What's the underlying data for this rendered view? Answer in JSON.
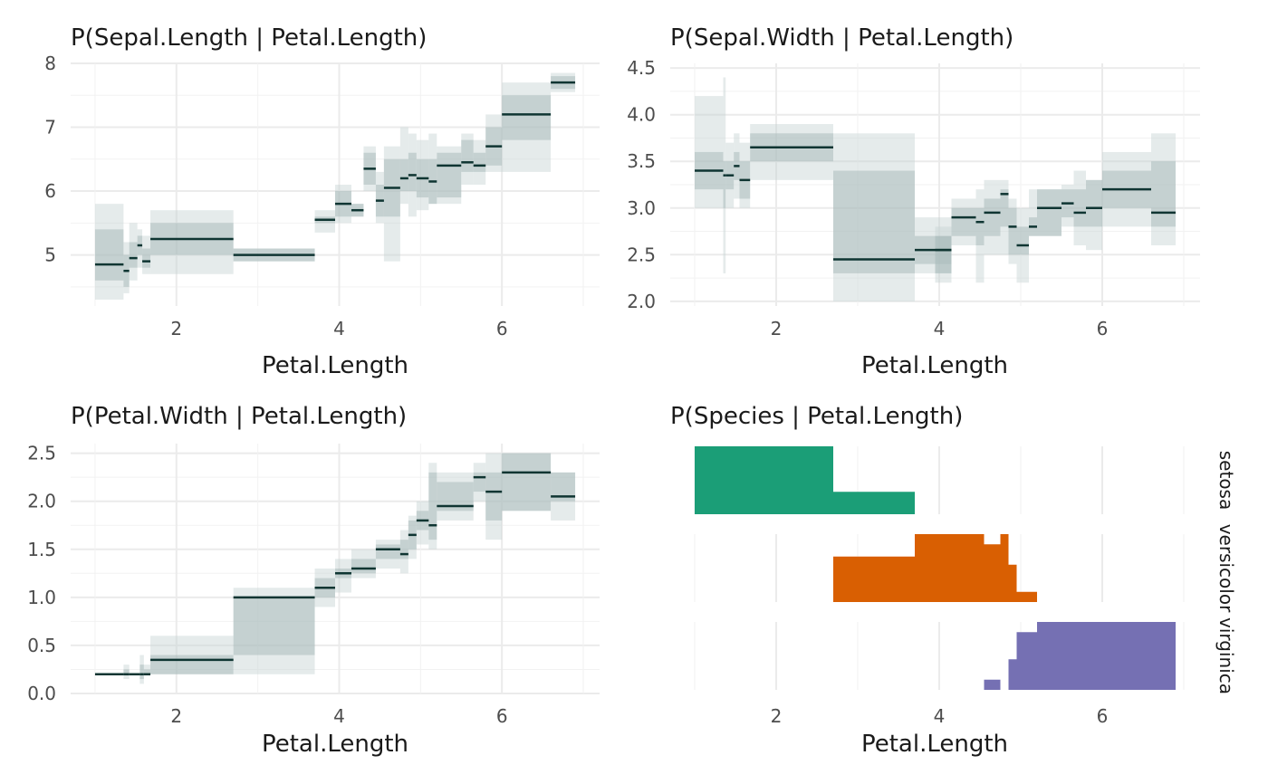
{
  "colors": {
    "band_outer": "#c5d3d3",
    "band_inner": "#9db1b1",
    "median": "#0f3532",
    "setosa": "#1b9e77",
    "versicolor": "#d95f02",
    "virginica": "#7570b3"
  },
  "chart_data": [
    {
      "type": "step-interval",
      "title": "P(Sepal.Length | Petal.Length)",
      "xlabel": "Petal.Length",
      "ylabel": "",
      "xlim": [
        0.7,
        7.2
      ],
      "ylim": [
        4.2,
        8.0
      ],
      "x_ticks": [
        2,
        4,
        6
      ],
      "y_ticks": [
        5,
        6,
        7,
        8
      ],
      "grid": true,
      "segments": [
        {
          "x0": 1.0,
          "x1": 1.35,
          "median": 4.85,
          "q25": 4.6,
          "q75": 5.4,
          "lo": 4.3,
          "hi": 5.8
        },
        {
          "x0": 1.35,
          "x1": 1.42,
          "median": 4.75,
          "q25": 4.5,
          "q75": 5.0,
          "lo": 4.4,
          "hi": 5.2
        },
        {
          "x0": 1.42,
          "x1": 1.52,
          "median": 4.95,
          "q25": 4.8,
          "q75": 5.2,
          "lo": 4.6,
          "hi": 5.5
        },
        {
          "x0": 1.52,
          "x1": 1.58,
          "median": 5.15,
          "q25": 5.0,
          "q75": 5.3,
          "lo": 4.8,
          "hi": 5.4
        },
        {
          "x0": 1.58,
          "x1": 1.68,
          "median": 4.9,
          "q25": 4.8,
          "q75": 5.1,
          "lo": 4.7,
          "hi": 5.3
        },
        {
          "x0": 1.68,
          "x1": 2.7,
          "median": 5.25,
          "q25": 5.0,
          "q75": 5.5,
          "lo": 4.7,
          "hi": 5.7
        },
        {
          "x0": 2.7,
          "x1": 3.7,
          "median": 5.0,
          "q25": 4.9,
          "q75": 5.1,
          "lo": 4.9,
          "hi": 5.1
        },
        {
          "x0": 3.7,
          "x1": 3.95,
          "median": 5.55,
          "q25": 5.5,
          "q75": 5.6,
          "lo": 5.35,
          "hi": 5.7
        },
        {
          "x0": 3.95,
          "x1": 4.15,
          "median": 5.8,
          "q25": 5.6,
          "q75": 6.0,
          "lo": 5.5,
          "hi": 6.1
        },
        {
          "x0": 4.15,
          "x1": 4.3,
          "median": 5.7,
          "q25": 5.6,
          "q75": 5.8,
          "lo": 5.6,
          "hi": 5.8
        },
        {
          "x0": 4.3,
          "x1": 4.45,
          "median": 6.35,
          "q25": 6.1,
          "q75": 6.6,
          "lo": 6.0,
          "hi": 6.7
        },
        {
          "x0": 4.45,
          "x1": 4.55,
          "median": 5.85,
          "q25": 5.6,
          "q75": 6.1,
          "lo": 5.5,
          "hi": 6.3
        },
        {
          "x0": 4.55,
          "x1": 4.75,
          "median": 6.05,
          "q25": 5.6,
          "q75": 6.5,
          "lo": 4.9,
          "hi": 6.7
        },
        {
          "x0": 4.75,
          "x1": 4.85,
          "median": 6.2,
          "q25": 6.0,
          "q75": 6.5,
          "lo": 5.8,
          "hi": 7.0
        },
        {
          "x0": 4.85,
          "x1": 4.95,
          "median": 6.25,
          "q25": 6.0,
          "q75": 6.6,
          "lo": 5.6,
          "hi": 6.9
        },
        {
          "x0": 4.95,
          "x1": 5.1,
          "median": 6.2,
          "q25": 5.9,
          "q75": 6.5,
          "lo": 5.7,
          "hi": 6.8
        },
        {
          "x0": 5.1,
          "x1": 5.2,
          "median": 6.15,
          "q25": 5.8,
          "q75": 6.5,
          "lo": 5.8,
          "hi": 6.9
        },
        {
          "x0": 5.2,
          "x1": 5.5,
          "median": 6.4,
          "q25": 5.9,
          "q75": 6.6,
          "lo": 5.8,
          "hi": 6.7
        },
        {
          "x0": 5.5,
          "x1": 5.65,
          "median": 6.45,
          "q25": 6.3,
          "q75": 6.8,
          "lo": 6.1,
          "hi": 6.9
        },
        {
          "x0": 5.65,
          "x1": 5.8,
          "median": 6.4,
          "q25": 6.3,
          "q75": 6.6,
          "lo": 6.1,
          "hi": 6.8
        },
        {
          "x0": 5.8,
          "x1": 6.0,
          "median": 6.7,
          "q25": 6.4,
          "q75": 7.0,
          "lo": 6.3,
          "hi": 7.2
        },
        {
          "x0": 6.0,
          "x1": 6.6,
          "median": 7.2,
          "q25": 6.8,
          "q75": 7.5,
          "lo": 6.3,
          "hi": 7.7
        },
        {
          "x0": 6.6,
          "x1": 6.9,
          "median": 7.7,
          "q25": 7.6,
          "q75": 7.8,
          "lo": 7.55,
          "hi": 7.85
        }
      ]
    },
    {
      "type": "step-interval",
      "title": "P(Sepal.Width | Petal.Length)",
      "xlabel": "Petal.Length",
      "ylabel": "",
      "xlim": [
        0.7,
        7.2
      ],
      "ylim": [
        1.95,
        4.55
      ],
      "x_ticks": [
        2,
        4,
        6
      ],
      "y_ticks": [
        2.0,
        2.5,
        3.0,
        3.5,
        4.0,
        4.5
      ],
      "y_tick_labels": [
        "2.0",
        "2.5",
        "3.0",
        "3.5",
        "4.0",
        "4.5"
      ],
      "grid": true,
      "segments": [
        {
          "x0": 1.0,
          "x1": 1.35,
          "median": 3.4,
          "q25": 3.2,
          "q75": 3.6,
          "lo": 3.0,
          "hi": 4.2
        },
        {
          "x0": 1.35,
          "x1": 1.38,
          "median": 3.35,
          "q25": 3.0,
          "q75": 3.5,
          "lo": 2.3,
          "hi": 4.4
        },
        {
          "x0": 1.38,
          "x1": 1.48,
          "median": 3.35,
          "q25": 3.2,
          "q75": 3.5,
          "lo": 3.0,
          "hi": 3.7
        },
        {
          "x0": 1.48,
          "x1": 1.55,
          "median": 3.45,
          "q25": 3.3,
          "q75": 3.6,
          "lo": 3.1,
          "hi": 3.8
        },
        {
          "x0": 1.55,
          "x1": 1.68,
          "median": 3.3,
          "q25": 3.1,
          "q75": 3.5,
          "lo": 3.0,
          "hi": 3.7
        },
        {
          "x0": 1.68,
          "x1": 2.7,
          "median": 3.65,
          "q25": 3.5,
          "q75": 3.8,
          "lo": 3.3,
          "hi": 3.9
        },
        {
          "x0": 2.7,
          "x1": 3.7,
          "median": 2.45,
          "q25": 2.3,
          "q75": 3.4,
          "lo": 2.0,
          "hi": 3.8
        },
        {
          "x0": 3.7,
          "x1": 4.15,
          "median": 2.55,
          "q25": 2.4,
          "q75": 2.7,
          "lo": 2.3,
          "hi": 2.9
        },
        {
          "x0": 3.95,
          "x1": 4.15,
          "median": 2.55,
          "q25": 2.3,
          "q75": 2.7,
          "lo": 2.2,
          "hi": 2.8
        },
        {
          "x0": 4.15,
          "x1": 4.45,
          "median": 2.9,
          "q25": 2.7,
          "q75": 3.0,
          "lo": 2.6,
          "hi": 3.1
        },
        {
          "x0": 4.45,
          "x1": 4.55,
          "median": 2.85,
          "q25": 2.6,
          "q75": 3.0,
          "lo": 2.2,
          "hi": 3.2
        },
        {
          "x0": 4.55,
          "x1": 4.75,
          "median": 2.95,
          "q25": 2.7,
          "q75": 3.1,
          "lo": 2.5,
          "hi": 3.3
        },
        {
          "x0": 4.75,
          "x1": 4.85,
          "median": 3.15,
          "q25": 2.8,
          "q75": 3.2,
          "lo": 2.5,
          "hi": 3.3
        },
        {
          "x0": 4.85,
          "x1": 4.95,
          "median": 2.8,
          "q25": 2.5,
          "q75": 3.0,
          "lo": 2.4,
          "hi": 3.1
        },
        {
          "x0": 4.95,
          "x1": 5.1,
          "median": 2.6,
          "q25": 2.5,
          "q75": 2.8,
          "lo": 2.2,
          "hi": 3.0
        },
        {
          "x0": 5.1,
          "x1": 5.2,
          "median": 2.8,
          "q25": 2.7,
          "q75": 2.9,
          "lo": 2.7,
          "hi": 3.2
        },
        {
          "x0": 5.2,
          "x1": 5.5,
          "median": 3.0,
          "q25": 2.7,
          "q75": 3.2,
          "lo": 2.7,
          "hi": 3.2
        },
        {
          "x0": 5.5,
          "x1": 5.65,
          "median": 3.05,
          "q25": 2.9,
          "q75": 3.2,
          "lo": 2.8,
          "hi": 3.25
        },
        {
          "x0": 5.65,
          "x1": 5.8,
          "median": 2.95,
          "q25": 2.8,
          "q75": 3.2,
          "lo": 2.6,
          "hi": 3.4
        },
        {
          "x0": 5.8,
          "x1": 6.0,
          "median": 3.0,
          "q25": 2.8,
          "q75": 3.3,
          "lo": 2.55,
          "hi": 3.3
        },
        {
          "x0": 6.0,
          "x1": 6.6,
          "median": 3.2,
          "q25": 3.0,
          "q75": 3.4,
          "lo": 2.8,
          "hi": 3.6
        },
        {
          "x0": 6.6,
          "x1": 6.9,
          "median": 2.95,
          "q25": 2.8,
          "q75": 3.5,
          "lo": 2.6,
          "hi": 3.8
        }
      ]
    },
    {
      "type": "step-interval",
      "title": "P(Petal.Width | Petal.Length)",
      "xlabel": "Petal.Length",
      "ylabel": "",
      "xlim": [
        0.7,
        7.2
      ],
      "ylim": [
        0.0,
        2.6
      ],
      "x_ticks": [
        2,
        4,
        6
      ],
      "y_ticks": [
        0.0,
        0.5,
        1.0,
        1.5,
        2.0,
        2.5
      ],
      "y_tick_labels": [
        "0.0",
        "0.5",
        "1.0",
        "1.5",
        "2.0",
        "2.5"
      ],
      "grid": true,
      "segments": [
        {
          "x0": 1.0,
          "x1": 1.35,
          "median": 0.2,
          "q25": 0.2,
          "q75": 0.2,
          "lo": 0.2,
          "hi": 0.2
        },
        {
          "x0": 1.35,
          "x1": 1.42,
          "median": 0.2,
          "q25": 0.2,
          "q75": 0.25,
          "lo": 0.15,
          "hi": 0.3
        },
        {
          "x0": 1.42,
          "x1": 1.55,
          "median": 0.2,
          "q25": 0.2,
          "q75": 0.2,
          "lo": 0.2,
          "hi": 0.2
        },
        {
          "x0": 1.55,
          "x1": 1.6,
          "median": 0.2,
          "q25": 0.15,
          "q75": 0.3,
          "lo": 0.1,
          "hi": 0.4
        },
        {
          "x0": 1.6,
          "x1": 1.68,
          "median": 0.2,
          "q25": 0.2,
          "q75": 0.25,
          "lo": 0.2,
          "hi": 0.3
        },
        {
          "x0": 1.68,
          "x1": 2.7,
          "median": 0.35,
          "q25": 0.2,
          "q75": 0.4,
          "lo": 0.2,
          "hi": 0.6
        },
        {
          "x0": 2.7,
          "x1": 3.7,
          "median": 1.0,
          "q25": 0.4,
          "q75": 1.0,
          "lo": 0.2,
          "hi": 1.1
        },
        {
          "x0": 3.7,
          "x1": 3.95,
          "median": 1.1,
          "q25": 1.0,
          "q75": 1.2,
          "lo": 0.9,
          "hi": 1.3
        },
        {
          "x0": 3.95,
          "x1": 4.15,
          "median": 1.25,
          "q25": 1.2,
          "q75": 1.3,
          "lo": 1.05,
          "hi": 1.4
        },
        {
          "x0": 4.15,
          "x1": 4.45,
          "median": 1.3,
          "q25": 1.25,
          "q75": 1.4,
          "lo": 1.2,
          "hi": 1.5
        },
        {
          "x0": 4.45,
          "x1": 4.75,
          "median": 1.5,
          "q25": 1.4,
          "q75": 1.55,
          "lo": 1.3,
          "hi": 1.6
        },
        {
          "x0": 4.75,
          "x1": 4.85,
          "median": 1.45,
          "q25": 1.4,
          "q75": 1.6,
          "lo": 1.25,
          "hi": 1.7
        },
        {
          "x0": 4.85,
          "x1": 4.95,
          "median": 1.65,
          "q25": 1.5,
          "q75": 1.8,
          "lo": 1.4,
          "hi": 1.85
        },
        {
          "x0": 4.95,
          "x1": 5.1,
          "median": 1.8,
          "q25": 1.7,
          "q75": 1.9,
          "lo": 1.55,
          "hi": 2.0
        },
        {
          "x0": 5.1,
          "x1": 5.2,
          "median": 1.75,
          "q25": 1.6,
          "q75": 2.3,
          "lo": 1.5,
          "hi": 2.4
        },
        {
          "x0": 5.2,
          "x1": 5.65,
          "median": 1.95,
          "q25": 1.9,
          "q75": 2.2,
          "lo": 1.8,
          "hi": 2.3
        },
        {
          "x0": 5.65,
          "x1": 5.8,
          "median": 2.25,
          "q25": 2.1,
          "q75": 2.3,
          "lo": 2.0,
          "hi": 2.4
        },
        {
          "x0": 5.8,
          "x1": 6.0,
          "median": 2.1,
          "q25": 1.8,
          "q75": 2.3,
          "lo": 1.6,
          "hi": 2.5
        },
        {
          "x0": 6.0,
          "x1": 6.6,
          "median": 2.3,
          "q25": 1.9,
          "q75": 2.5,
          "lo": 1.9,
          "hi": 2.5
        },
        {
          "x0": 6.6,
          "x1": 6.9,
          "median": 2.05,
          "q25": 2.0,
          "q75": 2.3,
          "lo": 1.8,
          "hi": 2.3
        }
      ]
    },
    {
      "type": "area",
      "title": "P(Species | Petal.Length)",
      "xlabel": "Petal.Length",
      "ylabel": "",
      "xlim": [
        0.7,
        7.2
      ],
      "x_ticks": [
        2,
        4,
        6
      ],
      "grid": true,
      "facets": [
        {
          "name": "setosa",
          "color_key": "setosa",
          "points": [
            [
              1.0,
              1.0
            ],
            [
              2.7,
              1.0
            ],
            [
              2.7,
              0.33
            ],
            [
              3.7,
              0.33
            ],
            [
              3.7,
              0.0
            ]
          ]
        },
        {
          "name": "versicolor",
          "color_key": "versicolor",
          "points": [
            [
              2.7,
              0.67
            ],
            [
              3.7,
              0.67
            ],
            [
              3.7,
              1.0
            ],
            [
              4.55,
              1.0
            ],
            [
              4.55,
              0.85
            ],
            [
              4.75,
              0.85
            ],
            [
              4.75,
              1.0
            ],
            [
              4.85,
              1.0
            ],
            [
              4.85,
              0.55
            ],
            [
              4.95,
              0.55
            ],
            [
              4.95,
              0.15
            ],
            [
              5.2,
              0.15
            ],
            [
              5.2,
              0.0
            ]
          ]
        },
        {
          "name": "virginica",
          "color_key": "virginica",
          "points": [
            [
              4.55,
              0.15
            ],
            [
              4.75,
              0.15
            ],
            [
              4.75,
              0.0
            ],
            [
              4.85,
              0.0
            ],
            [
              4.85,
              0.45
            ],
            [
              4.95,
              0.45
            ],
            [
              4.95,
              0.85
            ],
            [
              5.2,
              0.85
            ],
            [
              5.2,
              1.0
            ],
            [
              6.9,
              1.0
            ],
            [
              6.9,
              0.0
            ]
          ]
        }
      ]
    }
  ]
}
